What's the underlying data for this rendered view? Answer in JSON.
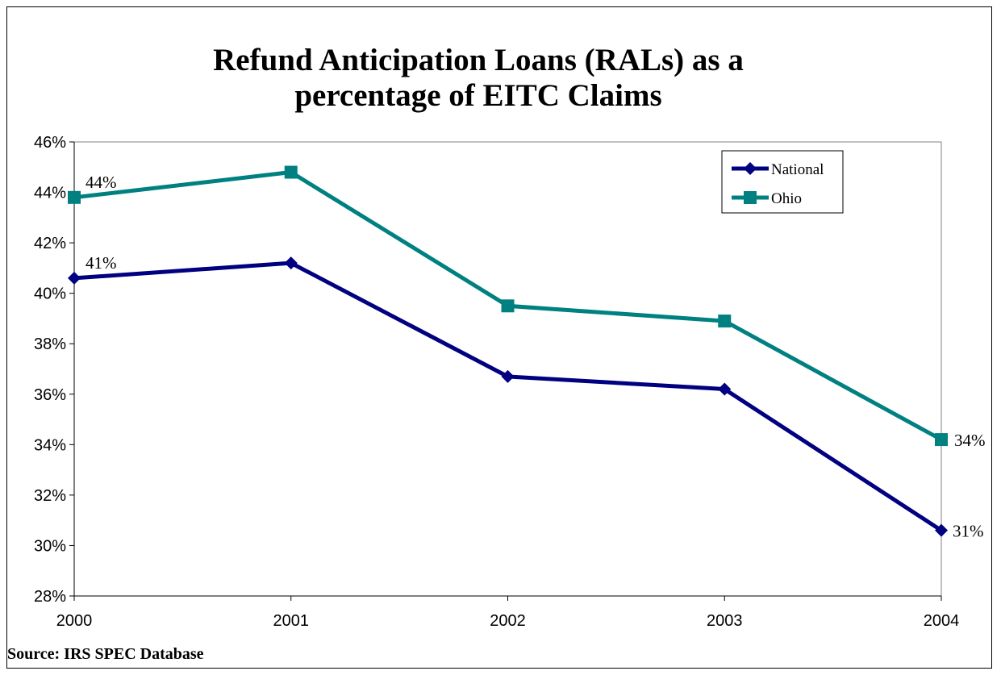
{
  "chart_data": {
    "type": "line",
    "title_lines": [
      "Refund Anticipation Loans (RALs) as a",
      "percentage of EITC Claims"
    ],
    "categories": [
      "2000",
      "2001",
      "2002",
      "2003",
      "2004"
    ],
    "y_ticks": [
      "28%",
      "30%",
      "32%",
      "34%",
      "36%",
      "38%",
      "40%",
      "42%",
      "44%",
      "46%"
    ],
    "ylim": [
      28,
      46
    ],
    "y_step": 2,
    "grid": false,
    "legend_position": "top-right",
    "series": [
      {
        "name": "National",
        "values": [
          40.6,
          41.2,
          36.7,
          36.2,
          30.6
        ],
        "color": "#000080",
        "marker": "diamond",
        "labels": [
          "41%",
          "",
          "",
          "",
          "31%"
        ]
      },
      {
        "name": "Ohio",
        "values": [
          43.8,
          44.8,
          39.5,
          38.9,
          34.2
        ],
        "color": "#008080",
        "marker": "square",
        "labels": [
          "44%",
          "",
          "",
          "",
          "34%"
        ]
      }
    ],
    "source": "Source: IRS SPEC Database"
  }
}
